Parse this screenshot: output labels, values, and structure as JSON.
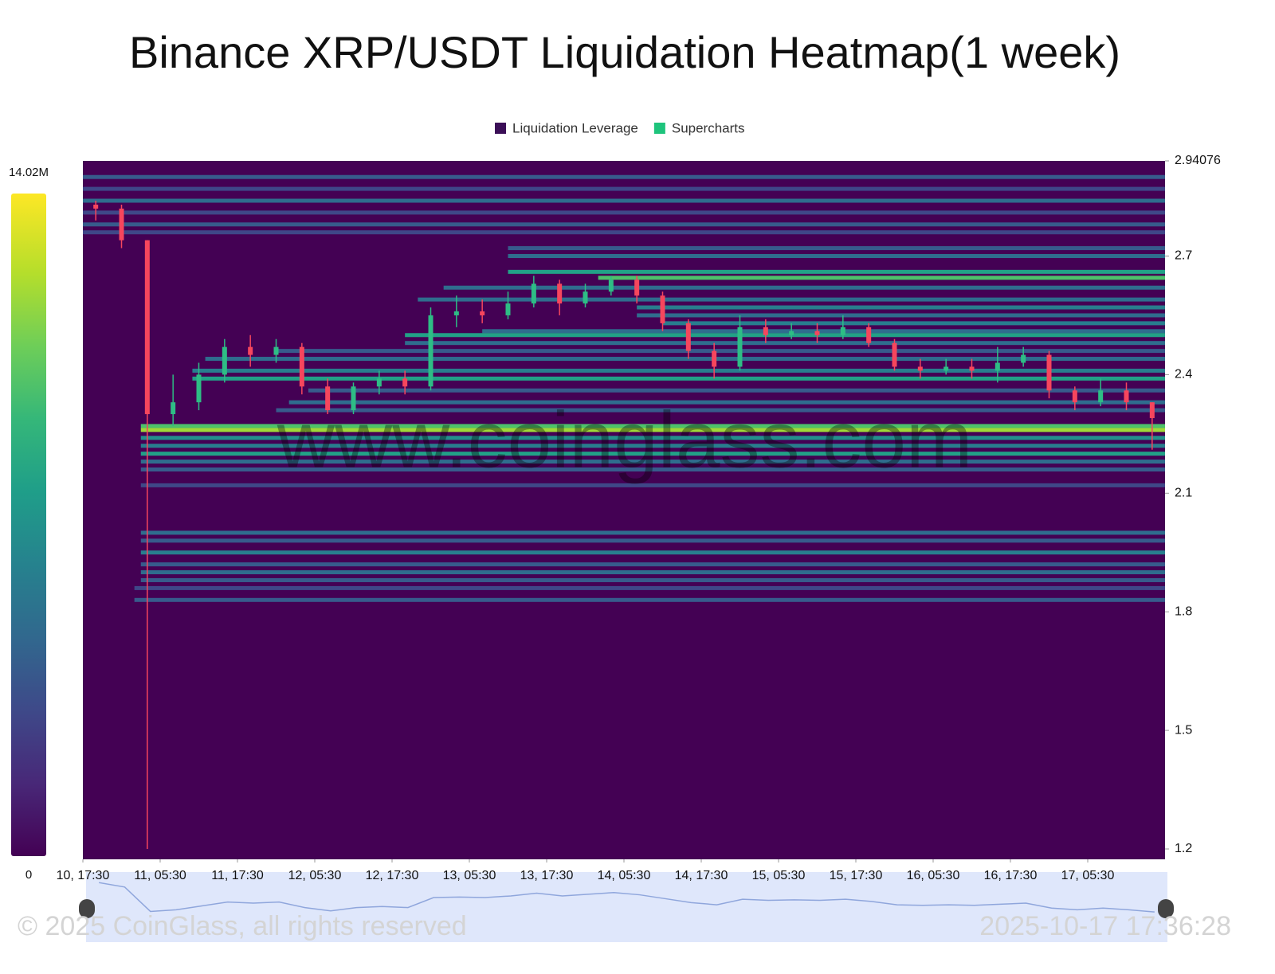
{
  "chart_data": {
    "type": "heatmap",
    "title": "Binance XRP/USDT Liquidation Heatmap(1 week)",
    "legend": [
      {
        "name": "Liquidation Leverage",
        "color": "#3b0f57"
      },
      {
        "name": "Supercharts",
        "color": "#1ec47c"
      }
    ],
    "colorbar": {
      "lim": [
        0,
        14.02
      ],
      "ticks": [
        0,
        {
          "value": 14.02,
          "label": "14.02M"
        }
      ]
    },
    "ylim": [
      1.1738,
      2.94076
    ],
    "yticks": [
      1.2,
      1.5,
      1.8,
      2.1,
      2.4,
      2.7,
      2.94076
    ],
    "xlim": [
      0,
      168
    ],
    "xticks": [
      {
        "value": 0,
        "label": "10, 17:30"
      },
      {
        "value": 12,
        "label": "11, 05:30"
      },
      {
        "value": 24,
        "label": "11, 17:30"
      },
      {
        "value": 36,
        "label": "12, 05:30"
      },
      {
        "value": 48,
        "label": "12, 17:30"
      },
      {
        "value": 60,
        "label": "13, 05:30"
      },
      {
        "value": 72,
        "label": "13, 17:30"
      },
      {
        "value": 84,
        "label": "14, 05:30"
      },
      {
        "value": 96,
        "label": "14, 17:30"
      },
      {
        "value": 108,
        "label": "15, 05:30"
      },
      {
        "value": 120,
        "label": "15, 17:30"
      },
      {
        "value": 132,
        "label": "16, 05:30"
      },
      {
        "value": 144,
        "label": "16, 17:30"
      },
      {
        "value": 156,
        "label": "17, 05:30"
      }
    ],
    "heat_bands": [
      {
        "price": 2.9,
        "start": 0,
        "intensity": 4
      },
      {
        "price": 2.87,
        "start": 0,
        "intensity": 3
      },
      {
        "price": 2.84,
        "start": 0,
        "intensity": 5
      },
      {
        "price": 2.81,
        "start": 0,
        "intensity": 3
      },
      {
        "price": 2.78,
        "start": 0,
        "intensity": 4
      },
      {
        "price": 2.76,
        "start": 0,
        "intensity": 3
      },
      {
        "price": 2.72,
        "start": 66,
        "intensity": 4
      },
      {
        "price": 2.7,
        "start": 66,
        "intensity": 5
      },
      {
        "price": 2.66,
        "start": 66,
        "intensity": 8
      },
      {
        "price": 2.645,
        "start": 80,
        "intensity": 10
      },
      {
        "price": 2.62,
        "start": 56,
        "intensity": 5
      },
      {
        "price": 2.59,
        "start": 52,
        "intensity": 5
      },
      {
        "price": 2.57,
        "start": 86,
        "intensity": 6
      },
      {
        "price": 2.55,
        "start": 86,
        "intensity": 5
      },
      {
        "price": 2.53,
        "start": 90,
        "intensity": 6
      },
      {
        "price": 2.51,
        "start": 62,
        "intensity": 5
      },
      {
        "price": 2.5,
        "start": 50,
        "intensity": 8
      },
      {
        "price": 2.48,
        "start": 50,
        "intensity": 5
      },
      {
        "price": 2.46,
        "start": 30,
        "intensity": 4
      },
      {
        "price": 2.44,
        "start": 19,
        "intensity": 5
      },
      {
        "price": 2.41,
        "start": 17,
        "intensity": 6
      },
      {
        "price": 2.39,
        "start": 17,
        "intensity": 8
      },
      {
        "price": 2.36,
        "start": 35,
        "intensity": 4
      },
      {
        "price": 2.33,
        "start": 32,
        "intensity": 5
      },
      {
        "price": 2.31,
        "start": 30,
        "intensity": 4
      },
      {
        "price": 2.27,
        "start": 9,
        "intensity": 10
      },
      {
        "price": 2.26,
        "start": 9,
        "intensity": 12
      },
      {
        "price": 2.24,
        "start": 9,
        "intensity": 7
      },
      {
        "price": 2.22,
        "start": 9,
        "intensity": 6
      },
      {
        "price": 2.2,
        "start": 9,
        "intensity": 8
      },
      {
        "price": 2.18,
        "start": 9,
        "intensity": 5
      },
      {
        "price": 2.16,
        "start": 9,
        "intensity": 4
      },
      {
        "price": 2.12,
        "start": 9,
        "intensity": 3
      },
      {
        "price": 2.0,
        "start": 9,
        "intensity": 5
      },
      {
        "price": 1.98,
        "start": 9,
        "intensity": 4
      },
      {
        "price": 1.95,
        "start": 9,
        "intensity": 6
      },
      {
        "price": 1.92,
        "start": 9,
        "intensity": 4
      },
      {
        "price": 1.9,
        "start": 9,
        "intensity": 5
      },
      {
        "price": 1.88,
        "start": 9,
        "intensity": 4
      },
      {
        "price": 1.86,
        "start": 8,
        "intensity": 3
      },
      {
        "price": 1.83,
        "start": 8,
        "intensity": 4
      }
    ],
    "candles": {
      "x": [
        0,
        4,
        8,
        12,
        16,
        20,
        24,
        28,
        32,
        36,
        40,
        44,
        48,
        52,
        56,
        60,
        64,
        68,
        72,
        76,
        80,
        84,
        88,
        92,
        96,
        100,
        104,
        108,
        112,
        116,
        120,
        124,
        128,
        132,
        136,
        140,
        144,
        148,
        152,
        156,
        160,
        164
      ],
      "open": [
        2.83,
        2.82,
        2.74,
        2.3,
        2.33,
        2.4,
        2.47,
        2.45,
        2.47,
        2.37,
        2.31,
        2.37,
        2.39,
        2.37,
        2.55,
        2.56,
        2.55,
        2.58,
        2.63,
        2.58,
        2.61,
        2.64,
        2.6,
        2.53,
        2.46,
        2.42,
        2.52,
        2.5,
        2.51,
        2.5,
        2.52,
        2.48,
        2.42,
        2.41,
        2.42,
        2.41,
        2.43,
        2.45,
        2.36,
        2.33,
        2.36,
        2.33
      ],
      "close": [
        2.82,
        2.74,
        2.3,
        2.33,
        2.4,
        2.47,
        2.45,
        2.47,
        2.37,
        2.31,
        2.37,
        2.39,
        2.37,
        2.55,
        2.56,
        2.55,
        2.58,
        2.63,
        2.58,
        2.61,
        2.64,
        2.6,
        2.53,
        2.46,
        2.42,
        2.52,
        2.5,
        2.51,
        2.5,
        2.52,
        2.48,
        2.42,
        2.41,
        2.42,
        2.41,
        2.43,
        2.45,
        2.36,
        2.33,
        2.36,
        2.33,
        2.29
      ],
      "high": [
        2.84,
        2.83,
        2.74,
        2.4,
        2.43,
        2.49,
        2.5,
        2.49,
        2.48,
        2.39,
        2.38,
        2.41,
        2.41,
        2.57,
        2.6,
        2.59,
        2.61,
        2.65,
        2.64,
        2.63,
        2.65,
        2.65,
        2.61,
        2.54,
        2.48,
        2.55,
        2.54,
        2.53,
        2.53,
        2.55,
        2.53,
        2.49,
        2.44,
        2.44,
        2.44,
        2.47,
        2.47,
        2.46,
        2.37,
        2.39,
        2.38,
        2.33
      ],
      "low": [
        2.79,
        2.72,
        1.2,
        2.27,
        2.31,
        2.38,
        2.42,
        2.43,
        2.35,
        2.3,
        2.3,
        2.35,
        2.35,
        2.36,
        2.52,
        2.53,
        2.54,
        2.57,
        2.55,
        2.57,
        2.6,
        2.58,
        2.51,
        2.44,
        2.39,
        2.41,
        2.48,
        2.49,
        2.48,
        2.49,
        2.47,
        2.41,
        2.39,
        2.4,
        2.39,
        2.38,
        2.42,
        2.34,
        2.31,
        2.32,
        2.31,
        2.21
      ]
    },
    "watermark": "www.coinglass.com",
    "copyright": "© 2025 CoinGlass, all rights reserved",
    "timestamp": "2025-10-17 17:36:28"
  }
}
